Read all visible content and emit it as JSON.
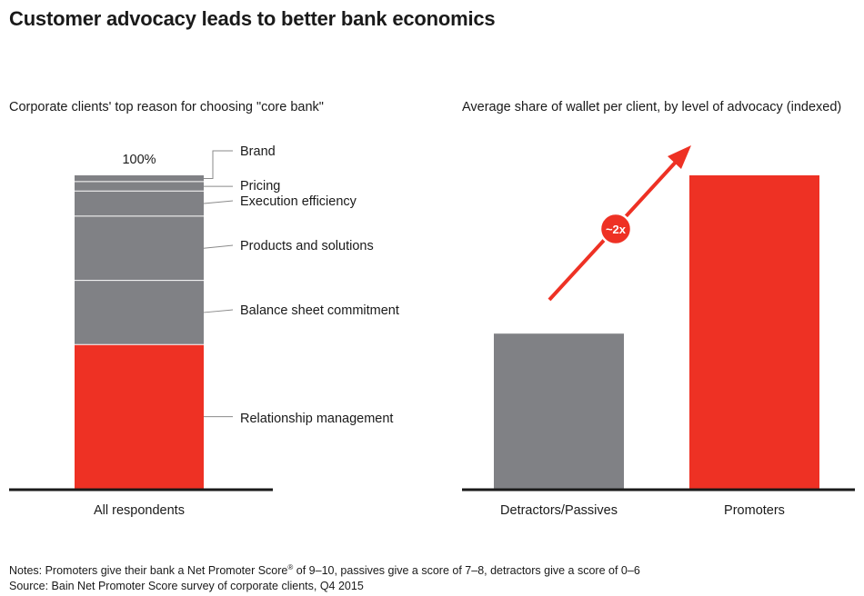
{
  "title": "Customer advocacy leads to better bank economics",
  "chart_data": [
    {
      "type": "bar",
      "stacked": true,
      "title": "Corporate clients' top reason for choosing \"core bank\"",
      "categories": [
        "All respondents"
      ],
      "total_label": "100%",
      "ylim": [
        0,
        100
      ],
      "series": [
        {
          "name": "Relationship management",
          "values": [
            46.0
          ],
          "color": "#ee3124"
        },
        {
          "name": "Balance sheet commitment",
          "values": [
            20.5
          ],
          "color": "#808185"
        },
        {
          "name": "Products and solutions",
          "values": [
            20.5
          ],
          "color": "#808185"
        },
        {
          "name": "Execution efficiency",
          "values": [
            8.0
          ],
          "color": "#808185"
        },
        {
          "name": "Pricing",
          "values": [
            3.0
          ],
          "color": "#808185"
        },
        {
          "name": "Brand",
          "values": [
            2.0
          ],
          "color": "#808185"
        }
      ],
      "legend_placement": "right"
    },
    {
      "type": "bar",
      "title": "Average share of wallet per client, by level of advocacy (indexed)",
      "categories": [
        "Detractors/Passives",
        "Promoters"
      ],
      "values": [
        1.0,
        2.02
      ],
      "colors": [
        "#808185",
        "#ee3124"
      ],
      "ylim": [
        0,
        2.02
      ],
      "annotation": "~2x"
    }
  ],
  "notes": {
    "line1_before": "Notes: Promoters give their bank a Net Promoter Score",
    "registered": "®",
    "line1_after": " of 9–10, passives give a score of 7–8, detractors give a score of 0–6",
    "line2": "Source: Bain Net Promoter Score survey of corporate clients, Q4 2015"
  }
}
